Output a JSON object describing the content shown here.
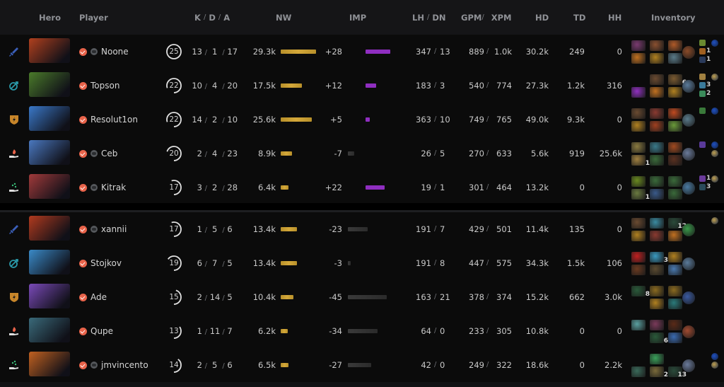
{
  "header": {
    "hero": "Hero",
    "player": "Player",
    "k": "K",
    "d": "D",
    "a": "A",
    "slash": "/",
    "nw": "NW",
    "imp": "IMP",
    "lh": "LH",
    "dn": "DN",
    "gpm": "GPM",
    "xpm": "XPM",
    "hd": "HD",
    "td": "TD",
    "hh": "HH",
    "inventory": "Inventory"
  },
  "colors": {
    "nw_bar": "#c99a30",
    "imp_positive": "#8f2ec0",
    "imp_negative": "#333333",
    "verified": "#e8634a",
    "role_carry": "#3b5fb8",
    "role_mid": "#2a98a8",
    "role_offlane": "#c8862a",
    "role_support": "#e0e0e0"
  },
  "teams": [
    {
      "players": [
        {
          "role": "carry",
          "hero_color": "#b0401e",
          "name": "Noone",
          "chat": true,
          "level": "25",
          "level_pct": 100,
          "k": "13",
          "d": "1",
          "a": "17",
          "nw": "29.3k",
          "nw_w": 50,
          "imp": "+28",
          "imp_w": 35,
          "lh": "347",
          "dn": "13",
          "gpm": "889",
          "xpm": "1.0k",
          "hd": "30.2k",
          "td": "249",
          "hh": "0",
          "items": [
            {
              "c": "#7a3a70"
            },
            {
              "c": "#8a5030"
            },
            {
              "c": "#b05a28"
            },
            {
              "c": "#c07020"
            },
            {
              "c": "#b08020"
            },
            {
              "c": "#5a7a88"
            }
          ],
          "neutral": "#8a4a28",
          "backpack": [
            {
              "c": "#6a8a30",
              "n": ""
            },
            {
              "c": "#a06020",
              "n": "1"
            },
            {
              "c": "#2a3a5a",
              "n": "1"
            }
          ],
          "buffs": [
            "#2050c0"
          ]
        },
        {
          "role": "mid",
          "hero_color": "#4a7a2a",
          "name": "Topson",
          "chat": false,
          "level": "22",
          "level_pct": 80,
          "k": "10",
          "d": "4",
          "a": "20",
          "nw": "17.5k",
          "nw_w": 30,
          "imp": "+12",
          "imp_w": 15,
          "lh": "183",
          "dn": "3",
          "gpm": "540",
          "xpm": "774",
          "hd": "27.3k",
          "td": "1.2k",
          "hh": "316",
          "items": [
            {
              "c": "",
              "empty": true
            },
            {
              "c": "#6a4a30"
            },
            {
              "c": "#7a5a30",
              "n": "6"
            },
            {
              "c": "#9030c0"
            },
            {
              "c": "#c07020"
            },
            {
              "c": "#b08020"
            }
          ],
          "neutral": "#5a7a9a",
          "backpack": [
            {
              "c": "#a08040",
              "n": ""
            },
            {
              "c": "#3a7a9a",
              "n": "3"
            },
            {
              "c": "#3a8a5a",
              "n": "2"
            }
          ],
          "buffs": [
            "#c0a050"
          ]
        },
        {
          "role": "offlane",
          "hero_color": "#3a78c8",
          "name": "Resolut1on",
          "chat": false,
          "level": "22",
          "level_pct": 80,
          "k": "14",
          "d": "2",
          "a": "10",
          "nw": "25.6k",
          "nw_w": 44,
          "imp": "+5",
          "imp_w": 6,
          "lh": "363",
          "dn": "10",
          "gpm": "749",
          "xpm": "765",
          "hd": "49.0k",
          "td": "9.3k",
          "hh": "0",
          "items": [
            {
              "c": "#6a4a30"
            },
            {
              "c": "#8a3a30"
            },
            {
              "c": "#c04a20"
            },
            {
              "c": "#b08020"
            },
            {
              "c": "#a04020"
            },
            {
              "c": "#6a9a3a"
            }
          ],
          "neutral": "#5a7a8a",
          "backpack": [
            {
              "c": "#3a7a3a",
              "n": ""
            }
          ],
          "buffs": [
            "#2050c0"
          ]
        },
        {
          "role": "support-hard",
          "hero_color": "#4a78c0",
          "name": "Ceb",
          "chat": true,
          "level": "20",
          "level_pct": 70,
          "k": "2",
          "d": "4",
          "a": "23",
          "nw": "8.9k",
          "nw_w": 16,
          "imp": "-7",
          "imp_w": 9,
          "lh": "26",
          "dn": "5",
          "gpm": "270",
          "xpm": "633",
          "hd": "5.6k",
          "td": "919",
          "hh": "25.6k",
          "items": [
            {
              "c": "#8a7a40"
            },
            {
              "c": "#3a7a8a"
            },
            {
              "c": "#a04a20"
            },
            {
              "c": "#a08040",
              "n": "1"
            },
            {
              "c": "#3a6a3a"
            },
            {
              "c": "#5a3020"
            }
          ],
          "neutral": "#6a7a9a",
          "backpack": [
            {
              "c": "#5a3a9a",
              "n": ""
            }
          ],
          "buffs": [
            "#2050c0",
            "#c0a050"
          ]
        },
        {
          "role": "support-soft",
          "hero_color": "#a03a3a",
          "name": "Kitrak",
          "chat": true,
          "level": "17",
          "level_pct": 55,
          "k": "3",
          "d": "2",
          "a": "28",
          "nw": "6.4k",
          "nw_w": 11,
          "imp": "+22",
          "imp_w": 27,
          "lh": "19",
          "dn": "1",
          "gpm": "301",
          "xpm": "464",
          "hd": "13.2k",
          "td": "0",
          "hh": "0",
          "items": [
            {
              "c": "#6a8a20"
            },
            {
              "c": "#3a6a3a"
            },
            {
              "c": "#3a6a3a"
            },
            {
              "c": "#6a7a40",
              "n": "1"
            },
            {
              "c": "#3a5a8a"
            },
            {
              "c": "#3a6a3a"
            }
          ],
          "neutral": "#4a7aa0",
          "backpack": [
            {
              "c": "#6a3a9a",
              "n": "1"
            },
            {
              "c": "#2a4a5a",
              "n": "3"
            }
          ],
          "buffs": [
            "#c0a050"
          ]
        }
      ]
    },
    {
      "players": [
        {
          "role": "carry",
          "hero_color": "#b03a1e",
          "name": "xannii",
          "chat": true,
          "level": "17",
          "level_pct": 55,
          "k": "1",
          "d": "5",
          "a": "6",
          "nw": "13.4k",
          "nw_w": 23,
          "imp": "-23",
          "imp_w": 28,
          "lh": "191",
          "dn": "7",
          "gpm": "429",
          "xpm": "501",
          "hd": "11.4k",
          "td": "135",
          "hh": "0",
          "items": [
            {
              "c": "#6a4a30"
            },
            {
              "c": "#3a8aa0"
            },
            {
              "c": "#2a4a3a",
              "n": "12"
            },
            {
              "c": "#b08020"
            },
            {
              "c": "#8a3a30"
            },
            {
              "c": "#c07020"
            }
          ],
          "neutral": "#3a9a4a",
          "backpack": [],
          "buffs": [
            "#c0a050"
          ]
        },
        {
          "role": "mid",
          "hero_color": "#3a8ac8",
          "name": "Stojkov",
          "chat": false,
          "level": "19",
          "level_pct": 65,
          "k": "6",
          "d": "7",
          "a": "5",
          "nw": "13.4k",
          "nw_w": 23,
          "imp": "-3",
          "imp_w": 4,
          "lh": "191",
          "dn": "8",
          "gpm": "447",
          "xpm": "575",
          "hd": "34.3k",
          "td": "1.5k",
          "hh": "106",
          "items": [
            {
              "c": "#c02020"
            },
            {
              "c": "#3a9ac0",
              "n": "3"
            },
            {
              "c": "#b08020"
            },
            {
              "c": "#6a3a20"
            },
            {
              "c": "#5a4a30"
            },
            {
              "c": "#4a7ab0"
            }
          ],
          "neutral": "#5a7a9a",
          "backpack": [],
          "buffs": []
        },
        {
          "role": "offlane",
          "hero_color": "#7a4ab8",
          "name": "Ade",
          "chat": false,
          "level": "15",
          "level_pct": 45,
          "k": "2",
          "d": "14",
          "a": "5",
          "nw": "10.4k",
          "nw_w": 18,
          "imp": "-45",
          "imp_w": 55,
          "lh": "163",
          "dn": "21",
          "gpm": "378",
          "xpm": "374",
          "hd": "15.2k",
          "td": "662",
          "hh": "3.0k",
          "items": [
            {
              "c": "#2a5a3a",
              "n": "8"
            },
            {
              "c": "#8a6a20"
            },
            {
              "c": "#8a6a20"
            },
            {
              "c": "",
              "empty": true
            },
            {
              "c": "#b08020"
            },
            {
              "c": "#2a7a7a"
            }
          ],
          "neutral": "#3a5aa0",
          "backpack": [],
          "buffs": []
        },
        {
          "role": "support-hard",
          "hero_color": "#3a6a7a",
          "name": "Qupe",
          "chat": false,
          "level": "13",
          "level_pct": 35,
          "k": "1",
          "d": "11",
          "a": "7",
          "nw": "6.2k",
          "nw_w": 10,
          "imp": "-34",
          "imp_w": 42,
          "lh": "64",
          "dn": "0",
          "gpm": "233",
          "xpm": "305",
          "hd": "10.8k",
          "td": "0",
          "hh": "0",
          "items": [
            {
              "c": "#5aa0a0"
            },
            {
              "c": "#7a3a5a"
            },
            {
              "c": "#5a2a18"
            },
            {
              "c": "",
              "empty": true
            },
            {
              "c": "#2a5a3a",
              "n": "6"
            },
            {
              "c": "#3a6ab0"
            }
          ],
          "neutral": "#a04a30",
          "backpack": [],
          "buffs": []
        },
        {
          "role": "support-soft",
          "hero_color": "#c06020",
          "name": "jmvincento",
          "chat": true,
          "level": "14",
          "level_pct": 40,
          "k": "2",
          "d": "5",
          "a": "6",
          "nw": "6.5k",
          "nw_w": 11,
          "imp": "-27",
          "imp_w": 33,
          "lh": "42",
          "dn": "0",
          "gpm": "249",
          "xpm": "322",
          "hd": "18.6k",
          "td": "0",
          "hh": "2.2k",
          "items": [
            {
              "c": "",
              "empty": true
            },
            {
              "c": "#3aa05a"
            },
            {
              "c": "",
              "empty": true
            },
            {
              "c": "#3a6a5a"
            },
            {
              "c": "#7a6a3a",
              "n": "2"
            },
            {
              "c": "#2a4a3a",
              "n": "13"
            }
          ],
          "neutral": "#6a7a9a",
          "backpack": [],
          "buffs": [
            "#2050c0",
            "#c0a050"
          ]
        }
      ]
    }
  ]
}
